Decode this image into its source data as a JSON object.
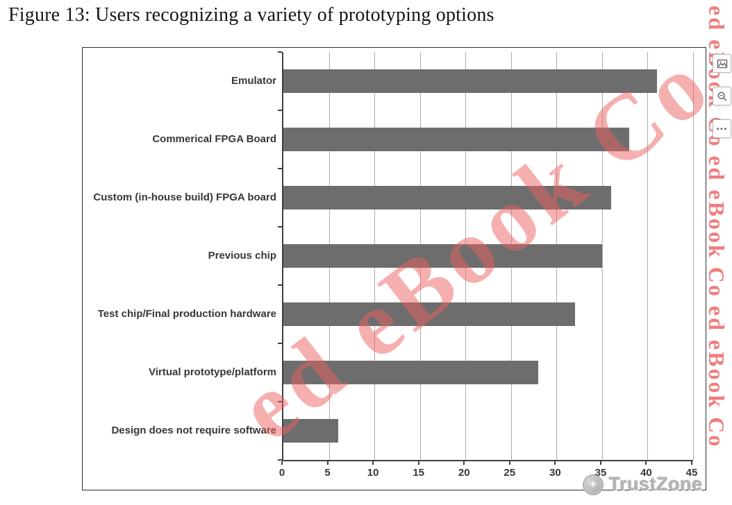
{
  "caption": "Figure 13: Users recognizing a variety of prototyping options",
  "chart_data": {
    "type": "bar",
    "orientation": "horizontal",
    "title": "Figure 13: Users recognizing a variety of prototyping options",
    "categories": [
      "Emulator",
      "Commerical FPGA Board",
      "Custom (in-house build) FPGA board",
      "Previous chip",
      "Test chip/Final production hardware",
      "Virtual prototype/platform",
      "Design does not require software"
    ],
    "values": [
      41,
      38,
      36,
      35,
      32,
      28,
      6
    ],
    "xlabel": "",
    "ylabel": "",
    "xlim": [
      0,
      45
    ],
    "xticks": [
      "0",
      "5",
      "10",
      "15",
      "20",
      "25",
      "30",
      "35",
      "40",
      "45"
    ],
    "grid": true,
    "bar_color": "#6d6d6d",
    "gridline_color": "#ababab",
    "legend": "none"
  },
  "toolbar": {
    "buttons": [
      {
        "icon": "image-preview-icon"
      },
      {
        "icon": "zoom-magnifier-icon"
      },
      {
        "icon": "more-ellipsis-icon",
        "label": "…"
      }
    ]
  },
  "watermark": {
    "diagonal_text": "ed eBook Co",
    "vertical_text": "ed eBook Co ed eBook Co ed eBook Co",
    "color": "#ee5f5f",
    "brand_text": "TrustZone"
  }
}
